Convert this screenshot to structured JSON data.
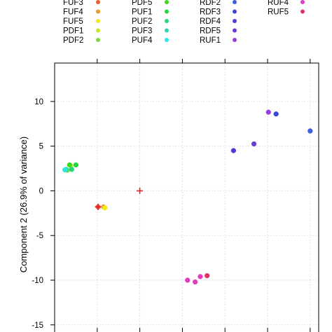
{
  "chart_data": {
    "type": "scatter",
    "ylabel": "Component 2 (26.9% of variance)",
    "xlabel": "",
    "xlim": [
      -2.0,
      4.2
    ],
    "ylim": [
      -15.8,
      14.3
    ],
    "yticks": [
      -15,
      -10,
      -5,
      0,
      5,
      10
    ],
    "ytick_labels": [
      "-15",
      "-10",
      "-5",
      "0",
      "5",
      "10"
    ],
    "xticks": [
      -1,
      0,
      1,
      2,
      3,
      4
    ],
    "grid": true,
    "legend_position": "top",
    "legend_columns": [
      [
        {
          "name": "FUF3",
          "color": "#e8602c"
        },
        {
          "name": "FUF4",
          "color": "#f29a1e"
        },
        {
          "name": "FUF5",
          "color": "#f2e619"
        },
        {
          "name": "PDF1",
          "color": "#c8e621"
        },
        {
          "name": "PDF2",
          "color": "#7fd934"
        }
      ],
      [
        {
          "name": "PDF5",
          "color": "#3fd91c"
        },
        {
          "name": "PUF1",
          "color": "#1ed93d"
        },
        {
          "name": "PUF2",
          "color": "#21d978"
        },
        {
          "name": "PUF3",
          "color": "#2ad9b3"
        },
        {
          "name": "PUF4",
          "color": "#2ee6e6"
        }
      ],
      [
        {
          "name": "RDF2",
          "color": "#3c5ee0"
        },
        {
          "name": "RDF3",
          "color": "#3a46d6"
        },
        {
          "name": "RDF4",
          "color": "#4b3cd6"
        },
        {
          "name": "RDF5",
          "color": "#6e3ad6"
        },
        {
          "name": "RUF1",
          "color": "#9a3ed9"
        }
      ],
      [
        {
          "name": "RUF4",
          "color": "#e03cc0"
        },
        {
          "name": "RUF5",
          "color": "#e0306a"
        }
      ]
    ],
    "series": [
      {
        "name": "PDF2",
        "color": "#7fd934",
        "points": [
          [
            -1.7,
            2.3
          ]
        ]
      },
      {
        "name": "PUF3",
        "color": "#2ad9b3",
        "points": [
          [
            -1.73,
            2.4
          ]
        ]
      },
      {
        "name": "PUF4",
        "color": "#2ee6e6",
        "points": [
          [
            -1.76,
            2.35
          ]
        ]
      },
      {
        "name": "PDF1",
        "color": "#c8e621",
        "points": [
          [
            -1.62,
            2.8
          ]
        ]
      },
      {
        "name": "PUF2",
        "color": "#21d978",
        "points": [
          [
            -1.6,
            2.4
          ]
        ]
      },
      {
        "name": "PDF5",
        "color": "#3fd91c",
        "points": [
          [
            -1.65,
            2.9
          ]
        ]
      },
      {
        "name": "PUF1",
        "color": "#1ed93d",
        "points": [
          [
            -1.5,
            2.9
          ]
        ]
      },
      {
        "name": "FUF3",
        "color": "#e8602c",
        "points": [
          [
            -0.98,
            -1.8
          ]
        ]
      },
      {
        "name": "FUF4",
        "color": "#f29a1e",
        "points": [
          [
            -0.85,
            -1.8
          ]
        ]
      },
      {
        "name": "FUF5",
        "color": "#f2e619",
        "points": [
          [
            -0.82,
            -1.9
          ]
        ]
      },
      {
        "name": "RDF2",
        "color": "#3c5ee0",
        "points": [
          [
            4.0,
            6.7
          ]
        ]
      },
      {
        "name": "RDF3",
        "color": "#3a46d6",
        "points": [
          [
            3.2,
            8.6
          ]
        ]
      },
      {
        "name": "RDF4",
        "color": "#4b3cd6",
        "points": [
          [
            2.2,
            4.5
          ]
        ]
      },
      {
        "name": "RDF5",
        "color": "#6e3ad6",
        "points": [
          [
            2.68,
            5.25
          ]
        ]
      },
      {
        "name": "RUF1",
        "color": "#9a3ed9",
        "points": [
          [
            3.02,
            8.8
          ]
        ]
      },
      {
        "name": "RUF4",
        "color": "#e03cc0",
        "points": [
          [
            1.12,
            -10.0
          ],
          [
            1.3,
            -10.2
          ],
          [
            1.42,
            -9.6
          ]
        ]
      },
      {
        "name": "RUF5",
        "color": "#e0306a",
        "points": [
          [
            1.58,
            -9.5
          ]
        ]
      }
    ],
    "centroids": [
      {
        "color": "#e8202c",
        "point": [
          -0.98,
          -1.8
        ]
      },
      {
        "color": "#e8202c",
        "point": [
          0.0,
          0.0
        ]
      }
    ]
  }
}
